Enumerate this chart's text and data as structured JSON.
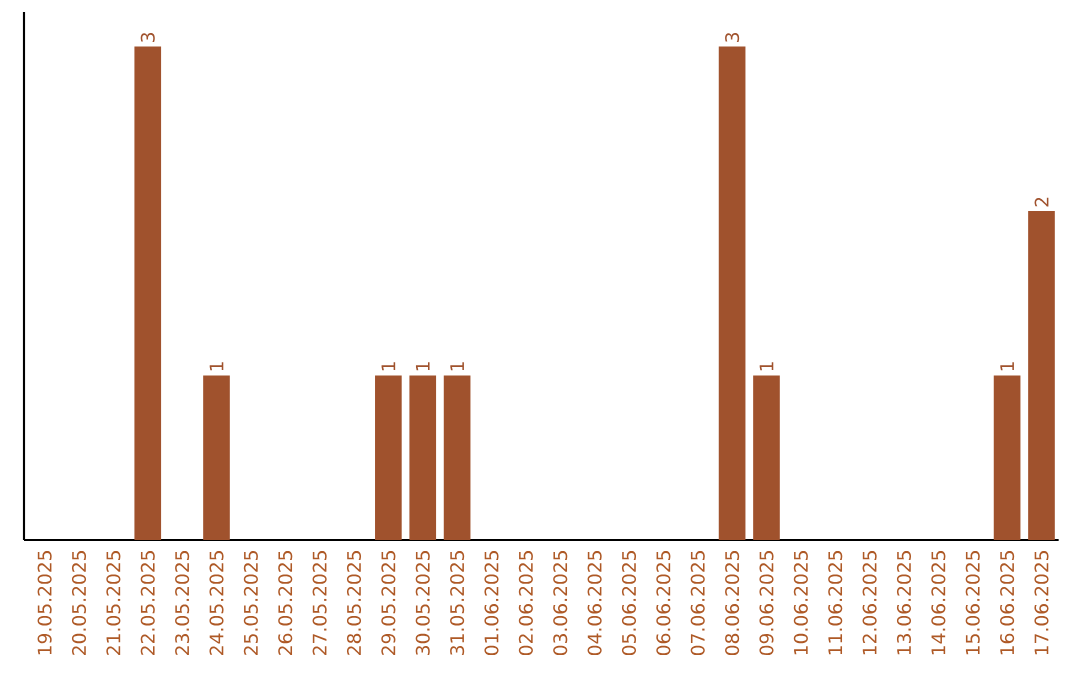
{
  "chart_data": {
    "type": "bar",
    "categories": [
      "19.05.2025",
      "20.05.2025",
      "21.05.2025",
      "22.05.2025",
      "23.05.2025",
      "24.05.2025",
      "25.05.2025",
      "26.05.2025",
      "27.05.2025",
      "28.05.2025",
      "29.05.2025",
      "30.05.2025",
      "31.05.2025",
      "01.06.2025",
      "02.06.2025",
      "03.06.2025",
      "04.06.2025",
      "05.06.2025",
      "06.06.2025",
      "07.06.2025",
      "08.06.2025",
      "09.06.2025",
      "10.06.2025",
      "11.06.2025",
      "12.06.2025",
      "13.06.2025",
      "14.06.2025",
      "15.06.2025",
      "16.06.2025",
      "17.06.2025"
    ],
    "values": [
      0,
      0,
      0,
      3,
      0,
      1,
      0,
      0,
      0,
      0,
      1,
      1,
      1,
      0,
      0,
      0,
      0,
      0,
      0,
      0,
      3,
      1,
      0,
      0,
      0,
      0,
      0,
      0,
      1,
      2
    ],
    "value_labels": [
      null,
      null,
      null,
      "3",
      null,
      "1",
      null,
      null,
      null,
      null,
      "1",
      "1",
      "1",
      null,
      null,
      null,
      null,
      null,
      null,
      null,
      "3",
      "1",
      null,
      null,
      null,
      null,
      null,
      null,
      "1",
      "2"
    ],
    "color": "#a0522d"
  }
}
